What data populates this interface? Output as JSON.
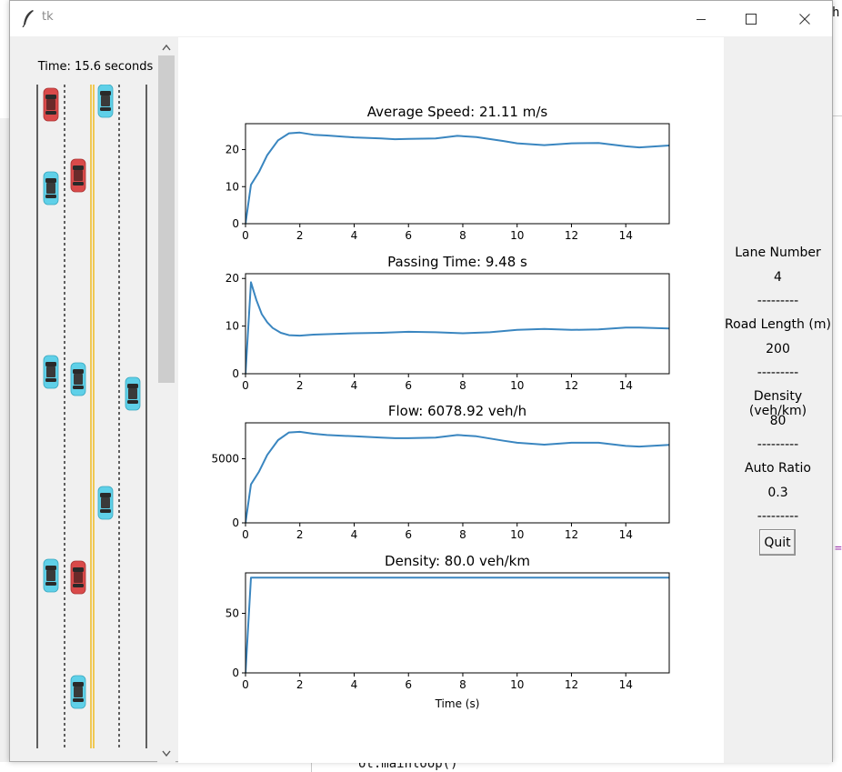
{
  "window": {
    "title": "tk"
  },
  "simulation": {
    "time_label": "Time: 15.6 seconds"
  },
  "plots": [
    {
      "title": "Average Speed: 21.11 m/s",
      "xlabel": ""
    },
    {
      "title": "Passing Time: 9.48 s",
      "xlabel": ""
    },
    {
      "title": "Flow: 6078.92 veh/h",
      "xlabel": ""
    },
    {
      "title": "Density: 80.0 veh/km",
      "xlabel": "Time (s)"
    }
  ],
  "chart_data": [
    {
      "type": "line",
      "title": "Average Speed: 21.11 m/s",
      "xlabel": "",
      "ylabel": "",
      "xlim": [
        0,
        15.6
      ],
      "ylim": [
        0,
        27
      ],
      "x_ticks": [
        0,
        2,
        4,
        6,
        8,
        10,
        12,
        14
      ],
      "y_ticks": [
        0,
        10,
        20
      ],
      "color": "#3a86c0",
      "x": [
        0,
        0.2,
        0.5,
        0.8,
        1.2,
        1.6,
        2.0,
        2.5,
        3.0,
        4.0,
        5.0,
        5.5,
        6.0,
        7.0,
        7.8,
        8.5,
        9.5,
        10.0,
        11.0,
        12.0,
        13.0,
        14.0,
        14.5,
        15.6
      ],
      "y": [
        0,
        10.5,
        14,
        18.5,
        22.5,
        24.4,
        24.6,
        24.0,
        23.8,
        23.3,
        23.0,
        22.8,
        22.9,
        23.0,
        23.7,
        23.4,
        22.3,
        21.7,
        21.2,
        21.7,
        21.8,
        20.9,
        20.6,
        21.11
      ]
    },
    {
      "type": "line",
      "title": "Passing Time: 9.48 s",
      "xlabel": "",
      "ylabel": "",
      "xlim": [
        0,
        15.6
      ],
      "ylim": [
        0,
        21
      ],
      "x_ticks": [
        0,
        2,
        4,
        6,
        8,
        10,
        12,
        14
      ],
      "y_ticks": [
        0,
        10,
        20
      ],
      "color": "#3a86c0",
      "x": [
        0,
        0.2,
        0.4,
        0.6,
        0.8,
        1.0,
        1.3,
        1.6,
        2.0,
        2.5,
        3.0,
        4.0,
        5.0,
        6.0,
        7.0,
        8.0,
        9.0,
        10.0,
        11.0,
        12.0,
        13.0,
        14.0,
        14.5,
        15.6
      ],
      "y": [
        0,
        19.2,
        15.5,
        12.5,
        10.8,
        9.6,
        8.6,
        8.1,
        8.0,
        8.2,
        8.3,
        8.5,
        8.6,
        8.8,
        8.7,
        8.5,
        8.7,
        9.2,
        9.4,
        9.2,
        9.3,
        9.7,
        9.7,
        9.48
      ]
    },
    {
      "type": "line",
      "title": "Flow: 6078.92 veh/h",
      "xlabel": "",
      "ylabel": "",
      "xlim": [
        0,
        15.6
      ],
      "ylim": [
        0,
        7800
      ],
      "x_ticks": [
        0,
        2,
        4,
        6,
        8,
        10,
        12,
        14
      ],
      "y_ticks": [
        0,
        5000
      ],
      "color": "#3a86c0",
      "x": [
        0,
        0.2,
        0.5,
        0.8,
        1.2,
        1.6,
        2.0,
        2.5,
        3.0,
        4.0,
        5.0,
        5.5,
        6.0,
        7.0,
        7.8,
        8.5,
        9.5,
        10.0,
        11.0,
        12.0,
        13.0,
        14.0,
        14.5,
        15.6
      ],
      "y": [
        0,
        3000,
        4000,
        5300,
        6450,
        7050,
        7100,
        6950,
        6850,
        6750,
        6650,
        6600,
        6600,
        6650,
        6850,
        6750,
        6400,
        6250,
        6100,
        6250,
        6250,
        6000,
        5950,
        6078.92
      ]
    },
    {
      "type": "line",
      "title": "Density: 80.0 veh/km",
      "xlabel": "Time (s)",
      "ylabel": "",
      "xlim": [
        0,
        15.6
      ],
      "ylim": [
        0,
        84
      ],
      "x_ticks": [
        0,
        2,
        4,
        6,
        8,
        10,
        12,
        14
      ],
      "y_ticks": [
        0,
        50
      ],
      "color": "#3a86c0",
      "x": [
        0,
        0.2,
        1.0,
        4.0,
        8.0,
        12.0,
        15.6
      ],
      "y": [
        0,
        80,
        80,
        80,
        80,
        80,
        80
      ]
    }
  ],
  "side_panel": {
    "lane_number_label": "Lane Number",
    "lane_number_value": "4",
    "road_length_label": "Road Length (m)",
    "road_length_value": "200",
    "density_label": "Density (veh/km)",
    "density_value": "80",
    "auto_ratio_label": "Auto Ratio",
    "auto_ratio_value": "0.3",
    "separator": "---------",
    "quit_label": "Quit"
  },
  "colors": {
    "line": "#3a86c0",
    "car_human": "#d94a4a",
    "car_auto": "#5fd0e8",
    "center_line": "#f0b400"
  },
  "background": {
    "top_right_text": "h",
    "bottom_code": "ot.mainloop()",
    "right_mark": "="
  }
}
